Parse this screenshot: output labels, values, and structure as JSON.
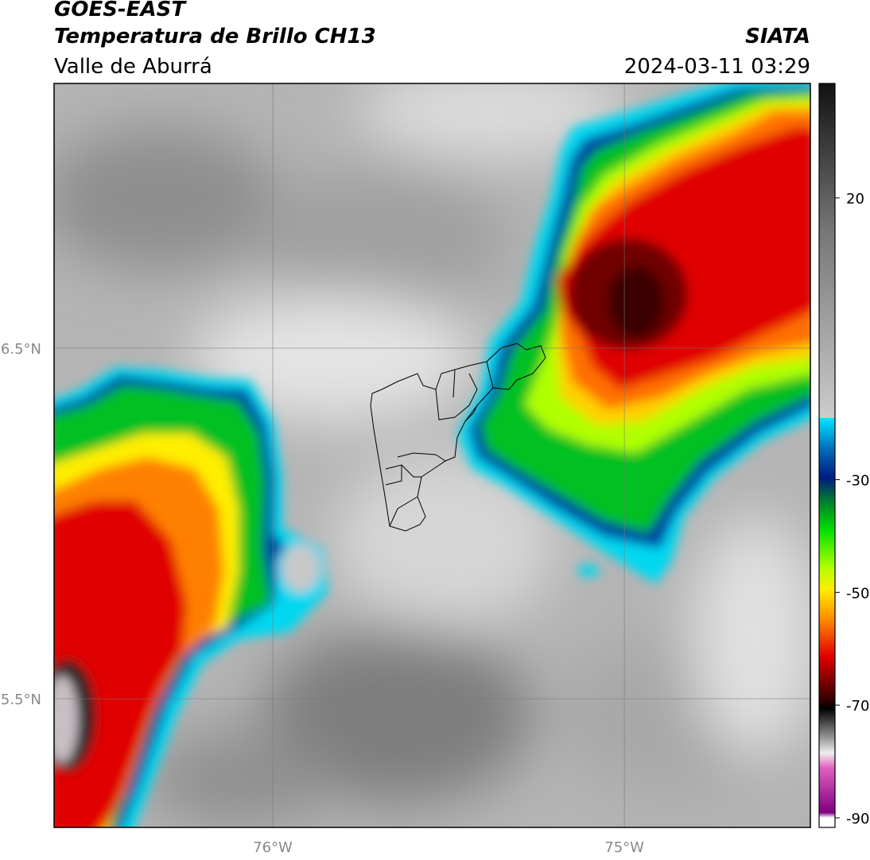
{
  "header": {
    "title": "GOES-EAST",
    "subtitle": "Temperatura de Brillo CH13",
    "region": "Valle de Aburrá",
    "source": "SIATA",
    "timestamp": "2024-03-11 03:29"
  },
  "map": {
    "lon_extent": [
      -76.622,
      -74.471
    ],
    "lat_extent": [
      5.133,
      7.255
    ],
    "lat_lines": [
      {
        "value": 6.5,
        "label": "6.5°N"
      },
      {
        "value": 5.5,
        "label": "5.5°N"
      }
    ],
    "lon_lines": [
      {
        "value": -76,
        "label": "76°W"
      },
      {
        "value": -75,
        "label": "75°W"
      }
    ]
  },
  "colorbar": {
    "lim": [
      -91.7,
      40.3
    ],
    "ticks": [
      20,
      -30,
      -50,
      -70,
      -90
    ]
  }
}
